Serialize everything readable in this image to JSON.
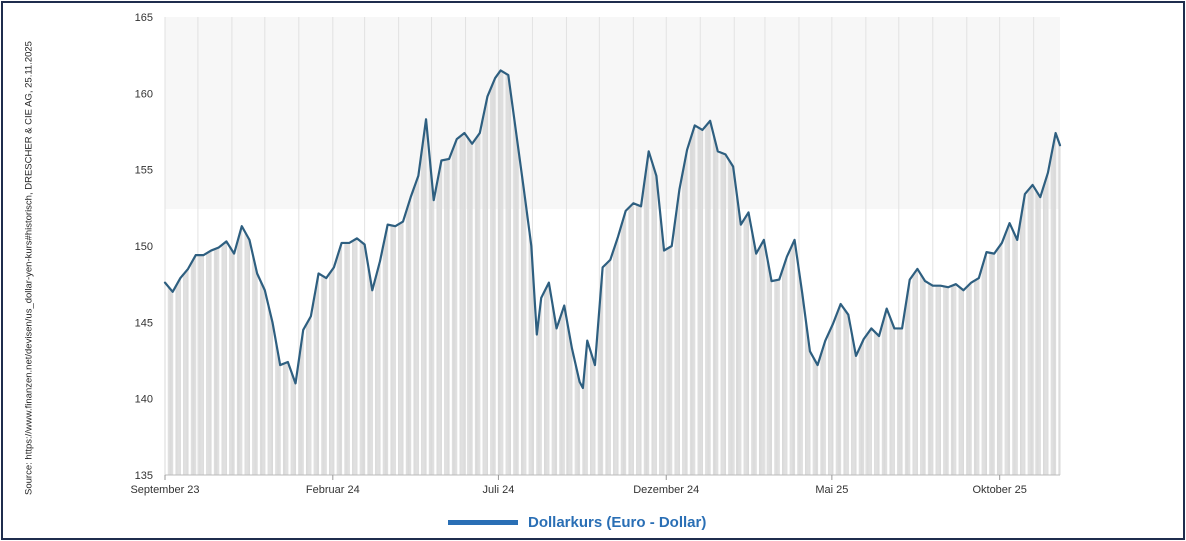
{
  "source_text": "Source: https://www.finanzen.net/devisen/us_dollar-yen-kurs#historisch, DRESCHER & CIE AG, 25.11.2025",
  "colors": {
    "line": "#2e5f80",
    "area": "#d9d9d9",
    "legend": "#2a6fb5",
    "border": "#1f2d4d",
    "grid": "#e2e2e2"
  },
  "chart_data": {
    "type": "area",
    "title": "",
    "xlabel": "",
    "ylabel": "",
    "ylim": [
      135,
      165
    ],
    "yticks": [
      135,
      140,
      145,
      150,
      155,
      160,
      165
    ],
    "xticks": [
      "September 23",
      "Februar 24",
      "Juli 24",
      "Dezember 24",
      "Mai 25",
      "Oktober 25"
    ],
    "legend": "bottom-center",
    "grid": "vertical",
    "series": [
      {
        "name": "Dollarkurs (Euro - Dollar)",
        "x": [
          "2023-09-01",
          "2023-09-08",
          "2023-09-15",
          "2023-09-22",
          "2023-09-29",
          "2023-10-06",
          "2023-10-13",
          "2023-10-20",
          "2023-10-27",
          "2023-11-03",
          "2023-11-10",
          "2023-11-17",
          "2023-11-24",
          "2023-12-01",
          "2023-12-08",
          "2023-12-15",
          "2023-12-22",
          "2023-12-29",
          "2024-01-05",
          "2024-01-12",
          "2024-01-19",
          "2024-01-26",
          "2024-02-02",
          "2024-02-09",
          "2024-02-16",
          "2024-02-23",
          "2024-03-01",
          "2024-03-08",
          "2024-03-15",
          "2024-03-22",
          "2024-03-29",
          "2024-04-05",
          "2024-04-12",
          "2024-04-19",
          "2024-04-26",
          "2024-05-03",
          "2024-05-10",
          "2024-05-17",
          "2024-05-24",
          "2024-05-31",
          "2024-06-07",
          "2024-06-14",
          "2024-06-21",
          "2024-06-28",
          "2024-07-03",
          "2024-07-10",
          "2024-07-17",
          "2024-07-24",
          "2024-07-31",
          "2024-08-05",
          "2024-08-09",
          "2024-08-16",
          "2024-08-23",
          "2024-08-30",
          "2024-09-06",
          "2024-09-13",
          "2024-09-16",
          "2024-09-20",
          "2024-09-27",
          "2024-10-04",
          "2024-10-11",
          "2024-10-18",
          "2024-10-25",
          "2024-11-01",
          "2024-11-08",
          "2024-11-15",
          "2024-11-22",
          "2024-11-29",
          "2024-12-06",
          "2024-12-13",
          "2024-12-20",
          "2024-12-27",
          "2025-01-03",
          "2025-01-10",
          "2025-01-17",
          "2025-01-24",
          "2025-01-31",
          "2025-02-07",
          "2025-02-14",
          "2025-02-21",
          "2025-02-28",
          "2025-03-07",
          "2025-03-14",
          "2025-03-21",
          "2025-03-28",
          "2025-04-04",
          "2025-04-11",
          "2025-04-18",
          "2025-04-25",
          "2025-05-02",
          "2025-05-09",
          "2025-05-16",
          "2025-05-23",
          "2025-05-30",
          "2025-06-06",
          "2025-06-13",
          "2025-06-20",
          "2025-06-27",
          "2025-07-04",
          "2025-07-11",
          "2025-07-18",
          "2025-07-25",
          "2025-08-01",
          "2025-08-08",
          "2025-08-15",
          "2025-08-22",
          "2025-08-29",
          "2025-09-05",
          "2025-09-12",
          "2025-09-19",
          "2025-09-26",
          "2025-10-03",
          "2025-10-10",
          "2025-10-17",
          "2025-10-24",
          "2025-10-31",
          "2025-11-07",
          "2025-11-14",
          "2025-11-21",
          "2025-11-25"
        ],
        "values": [
          147.6,
          147.0,
          147.9,
          148.5,
          149.4,
          149.4,
          149.7,
          149.9,
          150.3,
          149.5,
          151.3,
          150.4,
          148.2,
          147.1,
          145.0,
          142.2,
          142.4,
          141.0,
          144.5,
          145.4,
          148.2,
          147.9,
          148.6,
          150.2,
          150.2,
          150.5,
          150.1,
          147.1,
          149.0,
          151.4,
          151.3,
          151.6,
          153.2,
          154.6,
          158.3,
          153.0,
          155.6,
          155.7,
          157.0,
          157.4,
          156.7,
          157.4,
          159.8,
          161.0,
          161.5,
          161.2,
          157.5,
          153.8,
          150.0,
          144.2,
          146.6,
          147.6,
          144.6,
          146.1,
          143.3,
          141.1,
          140.7,
          143.8,
          142.2,
          148.6,
          149.1,
          150.6,
          152.3,
          152.8,
          152.6,
          156.2,
          154.6,
          149.7,
          150.0,
          153.7,
          156.3,
          157.9,
          157.6,
          158.2,
          156.2,
          156.0,
          155.2,
          151.4,
          152.2,
          149.5,
          150.4,
          147.7,
          147.8,
          149.3,
          150.4,
          146.9,
          143.1,
          142.2,
          143.8,
          144.9,
          146.2,
          145.5,
          142.8,
          143.9,
          144.6,
          144.1,
          145.9,
          144.6,
          144.6,
          147.8,
          148.5,
          147.7,
          147.4,
          147.4,
          147.3,
          147.5,
          147.1,
          147.6,
          147.9,
          149.6,
          149.5,
          150.2,
          151.5,
          150.4,
          153.4,
          154.0,
          153.2,
          154.8,
          157.4,
          156.6
        ]
      }
    ]
  },
  "legend_label": "Dollarkurs (Euro - Dollar)"
}
